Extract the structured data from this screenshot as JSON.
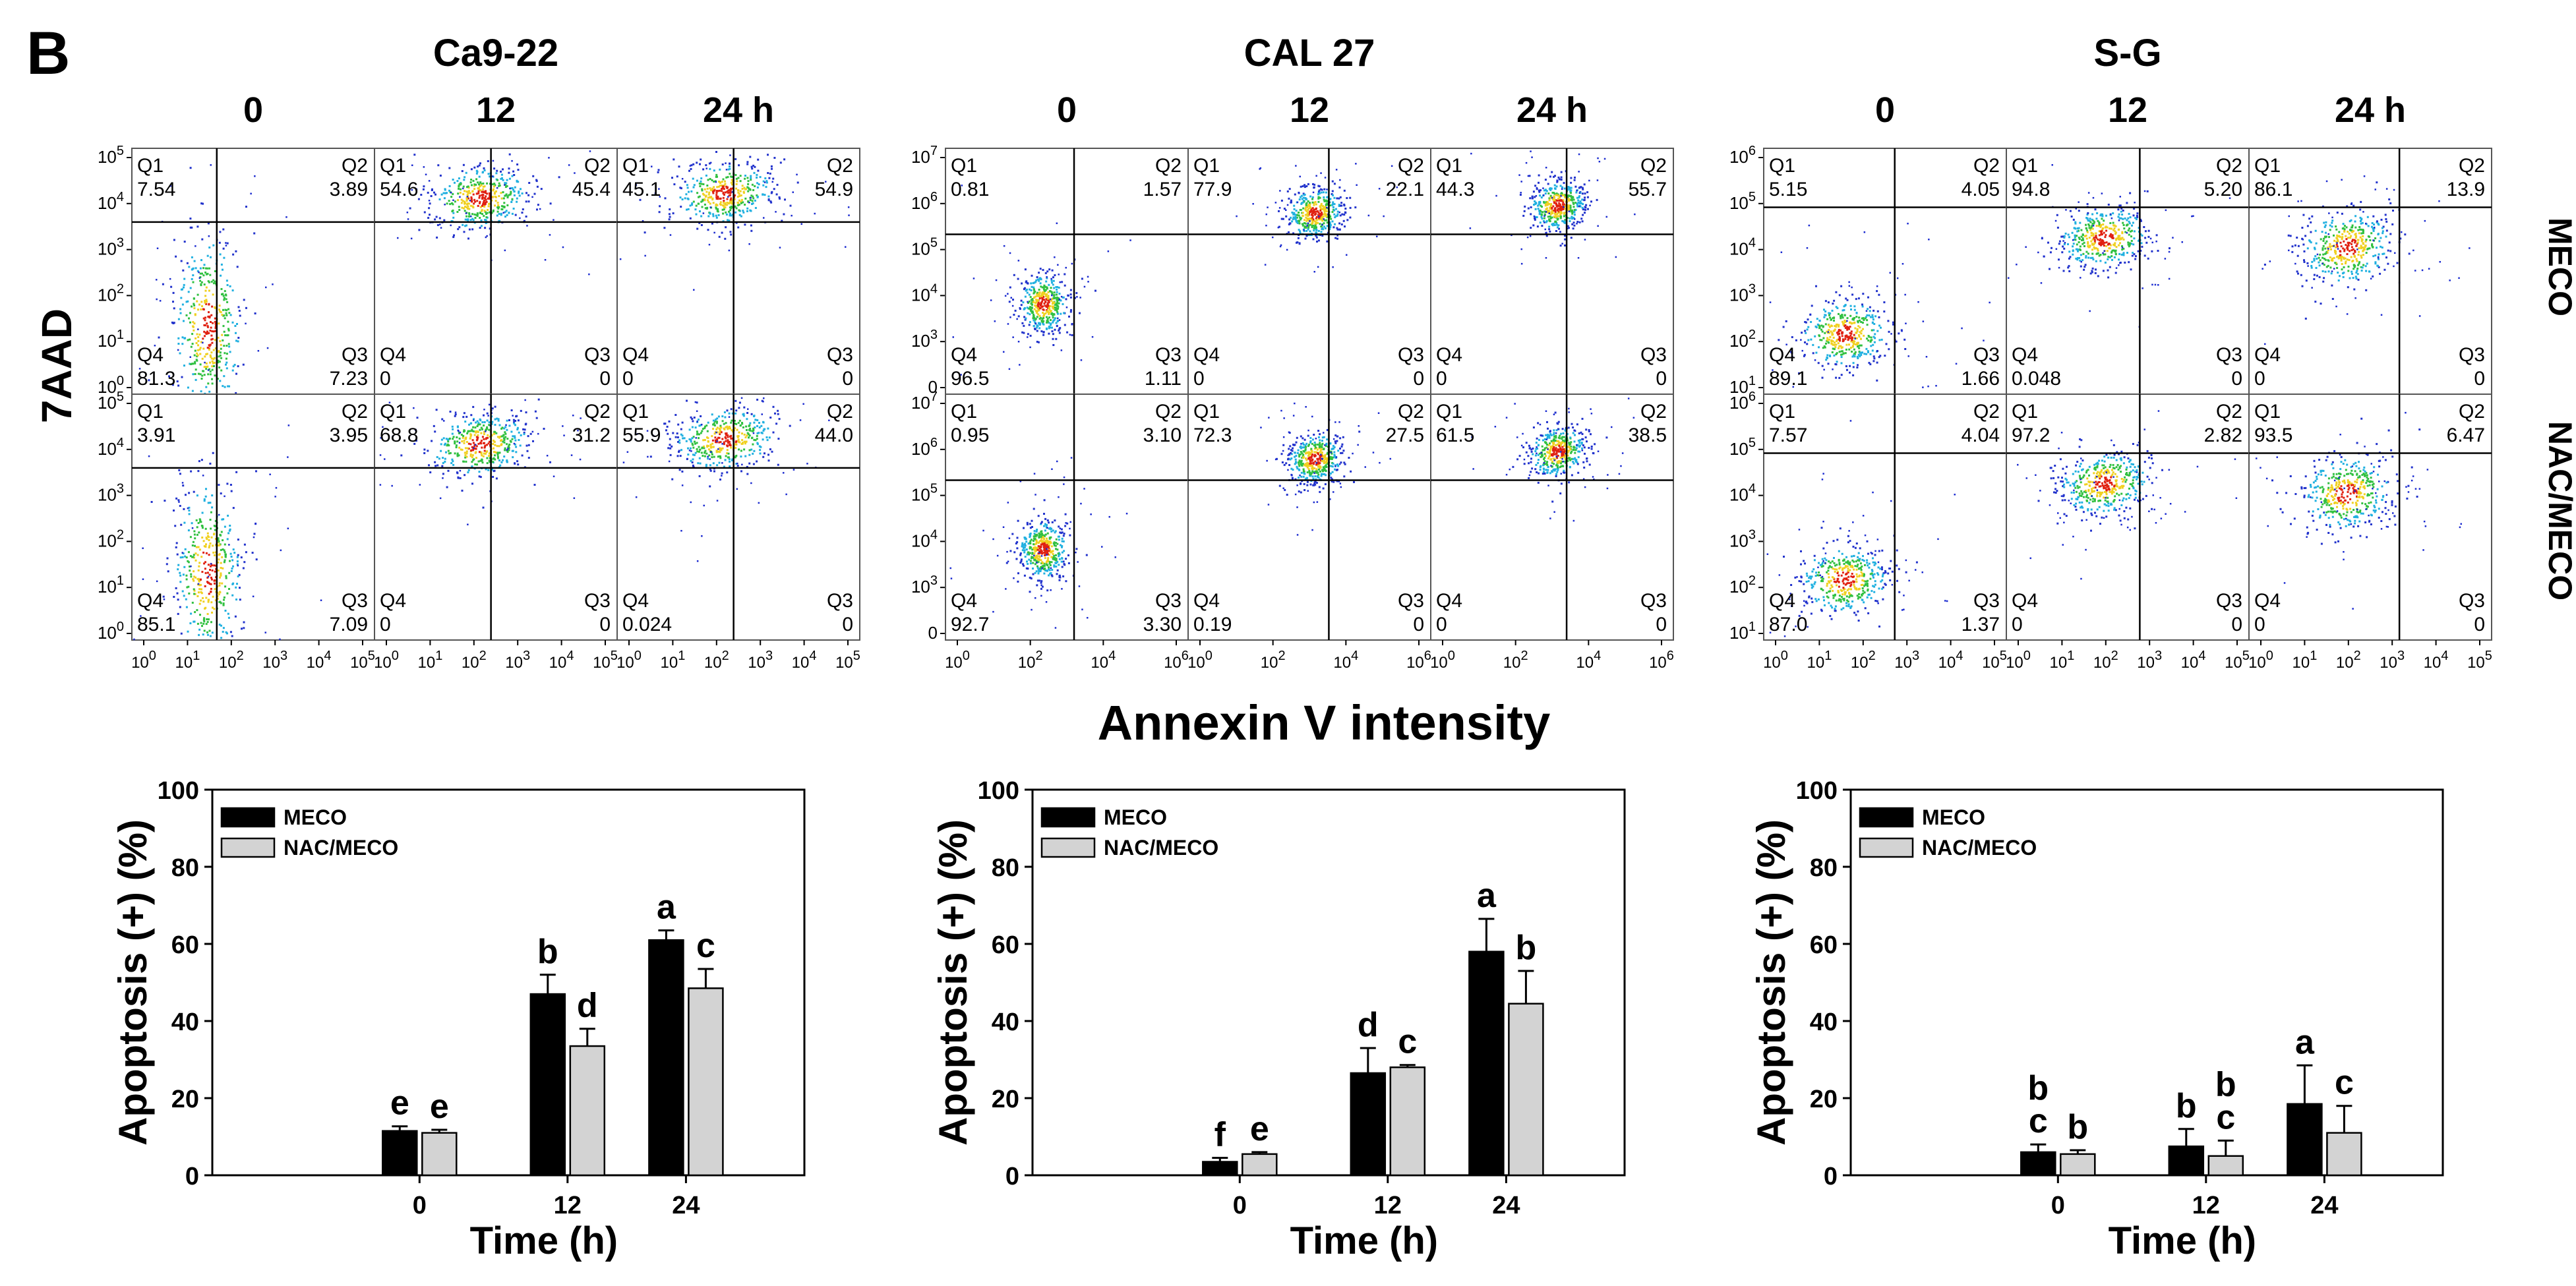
{
  "panel_letter": "B",
  "flow": {
    "y_axis_label": "7AAD",
    "x_axis_label": "Annexin V intensity",
    "row_labels": [
      "MECO",
      "NAC/MECO"
    ],
    "time_labels": [
      "0",
      "12",
      "24 h"
    ],
    "quadrant_names": [
      "Q1",
      "Q2",
      "Q4",
      "Q3"
    ],
    "cell_lines": [
      {
        "name": "Ca9-22",
        "y_ticks": [
          "10^0",
          "10^1",
          "10^2",
          "10^3",
          "10^4",
          "10^5"
        ],
        "x_ticks": [
          "10^0",
          "10^1",
          "10^2",
          "10^3",
          "10^4",
          "10^5"
        ],
        "rows": [
          [
            {
              "q1": "7.54",
              "q2": "3.89",
              "q4": "81.3",
              "q3": "7.23"
            },
            {
              "q1": "54.6",
              "q2": "45.4",
              "q4": "0",
              "q3": "0"
            },
            {
              "q1": "45.1",
              "q2": "54.9",
              "q4": "0",
              "q3": "0"
            }
          ],
          [
            {
              "q1": "3.91",
              "q2": "3.95",
              "q4": "85.1",
              "q3": "7.09"
            },
            {
              "q1": "68.8",
              "q2": "31.2",
              "q4": "0",
              "q3": "0"
            },
            {
              "q1": "55.9",
              "q2": "44.0",
              "q4": "0.024",
              "q3": "0"
            }
          ]
        ]
      },
      {
        "name": "CAL 27",
        "y_ticks": [
          "0",
          "10^3",
          "10^4",
          "10^5",
          "10^6",
          "10^7"
        ],
        "x_ticks": [
          "10^0",
          "10^2",
          "10^4",
          "10^6"
        ],
        "rows": [
          [
            {
              "q1": "0.81",
              "q2": "1.57",
              "q4": "96.5",
              "q3": "1.11"
            },
            {
              "q1": "77.9",
              "q2": "22.1",
              "q4": "0",
              "q3": "0"
            },
            {
              "q1": "44.3",
              "q2": "55.7",
              "q4": "0",
              "q3": "0"
            }
          ],
          [
            {
              "q1": "0.95",
              "q2": "3.10",
              "q4": "92.7",
              "q3": "3.30"
            },
            {
              "q1": "72.3",
              "q2": "27.5",
              "q4": "0.19",
              "q3": "0"
            },
            {
              "q1": "61.5",
              "q2": "38.5",
              "q4": "0",
              "q3": "0"
            }
          ]
        ]
      },
      {
        "name": "S-G",
        "y_ticks": [
          "10^1",
          "10^2",
          "10^3",
          "10^4",
          "10^5",
          "10^6"
        ],
        "x_ticks": [
          "10^0",
          "10^1",
          "10^2",
          "10^3",
          "10^4",
          "10^5"
        ],
        "rows": [
          [
            {
              "q1": "5.15",
              "q2": "4.05",
              "q4": "89.1",
              "q3": "1.66"
            },
            {
              "q1": "94.8",
              "q2": "5.20",
              "q4": "0.048",
              "q3": "0"
            },
            {
              "q1": "86.1",
              "q2": "13.9",
              "q4": "0",
              "q3": "0"
            }
          ],
          [
            {
              "q1": "7.57",
              "q2": "4.04",
              "q4": "87.0",
              "q3": "1.37"
            },
            {
              "q1": "97.2",
              "q2": "2.82",
              "q4": "0",
              "q3": "0"
            },
            {
              "q1": "93.5",
              "q2": "6.47",
              "q4": "0",
              "q3": "0"
            }
          ]
        ]
      }
    ]
  },
  "chart_data": [
    {
      "type": "bar",
      "title": "Ca9-22",
      "categories": [
        "0",
        "12",
        "24"
      ],
      "series": [
        {
          "name": "MECO",
          "values": [
            11.5,
            47,
            61
          ],
          "errors": [
            1.2,
            5,
            2.5
          ],
          "letters": [
            "e",
            "b",
            "a"
          ]
        },
        {
          "name": "NAC/MECO",
          "values": [
            11,
            33.5,
            48.5
          ],
          "errors": [
            0.8,
            4.5,
            5
          ],
          "letters": [
            "e",
            "d",
            "c"
          ]
        }
      ],
      "xlabel": "Time (h)",
      "ylabel": "Apoptosis (+) (%)",
      "ylim": [
        0,
        100
      ],
      "yticks": [
        0,
        20,
        40,
        60,
        80,
        100
      ],
      "legend": "top-left"
    },
    {
      "type": "bar",
      "title": "CAL 27",
      "categories": [
        "0",
        "12",
        "24"
      ],
      "series": [
        {
          "name": "MECO",
          "values": [
            3.5,
            26.5,
            58
          ],
          "errors": [
            1,
            6.5,
            8.5
          ],
          "letters": [
            "f",
            "d",
            "a"
          ]
        },
        {
          "name": "NAC/MECO",
          "values": [
            5.5,
            28,
            44.5
          ],
          "errors": [
            0.5,
            0.6,
            8.5
          ],
          "letters": [
            "e",
            "c",
            "b"
          ]
        }
      ],
      "xlabel": "Time (h)",
      "ylabel": "Apoptosis (+) (%)",
      "ylim": [
        0,
        100
      ],
      "yticks": [
        0,
        20,
        40,
        60,
        80,
        100
      ],
      "legend": "top-left"
    },
    {
      "type": "bar",
      "title": "S-G",
      "categories": [
        "0",
        "12",
        "24"
      ],
      "series": [
        {
          "name": "MECO",
          "values": [
            6,
            7.5,
            18.5
          ],
          "errors": [
            2,
            4.5,
            10
          ],
          "letters": [
            "b c",
            "b",
            "a"
          ]
        },
        {
          "name": "NAC/MECO",
          "values": [
            5.5,
            5,
            11
          ],
          "errors": [
            1,
            4,
            7
          ],
          "letters": [
            "b",
            "b c",
            "c"
          ]
        }
      ],
      "xlabel": "Time (h)",
      "ylabel": "Apoptosis (+) (%)",
      "ylim": [
        0,
        100
      ],
      "yticks": [
        0,
        20,
        40,
        60,
        80,
        100
      ],
      "legend": "top-left"
    }
  ]
}
